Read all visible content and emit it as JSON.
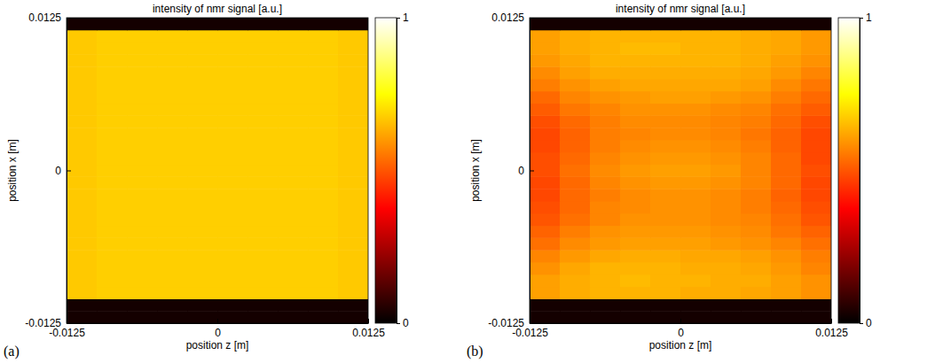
{
  "chart_data": [
    {
      "type": "heatmap",
      "panel": "(a)",
      "title": "intensity of nmr signal [a.u.]",
      "x_label": "position z [m]",
      "y_label": "position x [m]",
      "xlim": [
        -0.0125,
        0.0125
      ],
      "xticks": [
        -0.0125,
        0,
        0.0125
      ],
      "ylim": [
        -0.0125,
        0.0125
      ],
      "yticks": [
        -0.0125,
        0,
        0.0125
      ],
      "colorbar": {
        "range": [
          0,
          1
        ],
        "ticks": [
          0,
          1
        ]
      },
      "cells": [
        [
          0.03,
          0.03,
          0.03,
          0.03,
          0.03,
          0.03,
          0.03,
          0.03,
          0.03,
          0.03
        ],
        [
          0.03,
          0.03,
          0.03,
          0.03,
          0.03,
          0.03,
          0.03,
          0.03,
          0.03,
          0.03
        ],
        [
          0.67,
          0.68,
          0.68,
          0.68,
          0.68,
          0.68,
          0.68,
          0.68,
          0.68,
          0.67
        ],
        [
          0.67,
          0.68,
          0.68,
          0.68,
          0.68,
          0.68,
          0.68,
          0.68,
          0.68,
          0.67
        ],
        [
          0.67,
          0.68,
          0.68,
          0.68,
          0.68,
          0.68,
          0.68,
          0.68,
          0.68,
          0.67
        ],
        [
          0.67,
          0.68,
          0.68,
          0.68,
          0.68,
          0.68,
          0.68,
          0.68,
          0.68,
          0.67
        ],
        [
          0.67,
          0.68,
          0.68,
          0.68,
          0.68,
          0.68,
          0.68,
          0.68,
          0.68,
          0.67
        ],
        [
          0.67,
          0.68,
          0.68,
          0.68,
          0.68,
          0.68,
          0.68,
          0.68,
          0.68,
          0.67
        ],
        [
          0.67,
          0.68,
          0.68,
          0.68,
          0.68,
          0.68,
          0.68,
          0.68,
          0.68,
          0.67
        ],
        [
          0.67,
          0.68,
          0.68,
          0.68,
          0.68,
          0.68,
          0.68,
          0.68,
          0.68,
          0.67
        ],
        [
          0.67,
          0.68,
          0.68,
          0.68,
          0.68,
          0.68,
          0.68,
          0.68,
          0.68,
          0.67
        ],
        [
          0.67,
          0.68,
          0.68,
          0.68,
          0.68,
          0.68,
          0.68,
          0.68,
          0.68,
          0.67
        ],
        [
          0.67,
          0.68,
          0.68,
          0.68,
          0.68,
          0.68,
          0.68,
          0.68,
          0.68,
          0.67
        ],
        [
          0.67,
          0.68,
          0.68,
          0.68,
          0.68,
          0.68,
          0.68,
          0.68,
          0.68,
          0.67
        ],
        [
          0.67,
          0.68,
          0.68,
          0.68,
          0.68,
          0.68,
          0.68,
          0.68,
          0.68,
          0.67
        ],
        [
          0.67,
          0.68,
          0.68,
          0.68,
          0.68,
          0.68,
          0.68,
          0.68,
          0.68,
          0.67
        ],
        [
          0.67,
          0.68,
          0.68,
          0.68,
          0.68,
          0.68,
          0.68,
          0.68,
          0.68,
          0.67
        ],
        [
          0.67,
          0.68,
          0.68,
          0.68,
          0.68,
          0.68,
          0.68,
          0.68,
          0.68,
          0.67
        ],
        [
          0.67,
          0.68,
          0.68,
          0.68,
          0.68,
          0.68,
          0.68,
          0.68,
          0.68,
          0.67
        ],
        [
          0.67,
          0.68,
          0.68,
          0.68,
          0.68,
          0.68,
          0.68,
          0.68,
          0.68,
          0.67
        ],
        [
          0.67,
          0.68,
          0.68,
          0.68,
          0.68,
          0.68,
          0.68,
          0.68,
          0.68,
          0.67
        ],
        [
          0.67,
          0.68,
          0.68,
          0.68,
          0.68,
          0.68,
          0.68,
          0.68,
          0.68,
          0.67
        ],
        [
          0.67,
          0.68,
          0.68,
          0.68,
          0.68,
          0.68,
          0.68,
          0.68,
          0.68,
          0.67
        ],
        [
          0.67,
          0.68,
          0.68,
          0.68,
          0.68,
          0.68,
          0.68,
          0.68,
          0.68,
          0.67
        ],
        [
          0.03,
          0.03,
          0.03,
          0.03,
          0.03,
          0.03,
          0.03,
          0.03,
          0.03,
          0.03
        ]
      ]
    },
    {
      "type": "heatmap",
      "panel": "(b)",
      "title": "intensity of nmr signal [a.u.]",
      "x_label": "position z [m]",
      "y_label": "position x [m]",
      "xlim": [
        -0.0125,
        0.0125
      ],
      "xticks": [
        -0.0125,
        0,
        0.0125
      ],
      "ylim": [
        -0.0125,
        0.0125
      ],
      "yticks": [
        -0.0125,
        0,
        0.0125
      ],
      "colorbar": {
        "range": [
          0,
          1
        ],
        "ticks": [
          0,
          1
        ]
      },
      "cells": [
        [
          0.03,
          0.03,
          0.03,
          0.03,
          0.03,
          0.03,
          0.03,
          0.03,
          0.03,
          0.03
        ],
        [
          0.03,
          0.03,
          0.03,
          0.03,
          0.03,
          0.03,
          0.03,
          0.03,
          0.03,
          0.03
        ],
        [
          0.61,
          0.63,
          0.64,
          0.64,
          0.64,
          0.63,
          0.63,
          0.62,
          0.61,
          0.59
        ],
        [
          0.61,
          0.63,
          0.64,
          0.65,
          0.64,
          0.64,
          0.63,
          0.63,
          0.61,
          0.59
        ],
        [
          0.59,
          0.62,
          0.64,
          0.64,
          0.64,
          0.63,
          0.63,
          0.62,
          0.6,
          0.57
        ],
        [
          0.57,
          0.6,
          0.62,
          0.63,
          0.63,
          0.62,
          0.62,
          0.61,
          0.59,
          0.56
        ],
        [
          0.54,
          0.58,
          0.6,
          0.61,
          0.61,
          0.61,
          0.6,
          0.59,
          0.57,
          0.54
        ],
        [
          0.52,
          0.56,
          0.59,
          0.6,
          0.6,
          0.6,
          0.59,
          0.58,
          0.55,
          0.52
        ],
        [
          0.5,
          0.54,
          0.57,
          0.59,
          0.59,
          0.59,
          0.58,
          0.57,
          0.54,
          0.5
        ],
        [
          0.49,
          0.53,
          0.57,
          0.58,
          0.59,
          0.59,
          0.58,
          0.56,
          0.53,
          0.49
        ],
        [
          0.48,
          0.53,
          0.56,
          0.58,
          0.59,
          0.59,
          0.58,
          0.56,
          0.52,
          0.48
        ],
        [
          0.48,
          0.53,
          0.57,
          0.59,
          0.6,
          0.6,
          0.59,
          0.57,
          0.53,
          0.48
        ],
        [
          0.49,
          0.54,
          0.58,
          0.6,
          0.61,
          0.61,
          0.6,
          0.57,
          0.53,
          0.49
        ],
        [
          0.49,
          0.53,
          0.57,
          0.59,
          0.6,
          0.6,
          0.59,
          0.57,
          0.53,
          0.48
        ],
        [
          0.48,
          0.52,
          0.56,
          0.58,
          0.59,
          0.59,
          0.58,
          0.56,
          0.52,
          0.48
        ],
        [
          0.48,
          0.52,
          0.56,
          0.57,
          0.58,
          0.58,
          0.57,
          0.55,
          0.52,
          0.48
        ],
        [
          0.49,
          0.53,
          0.56,
          0.58,
          0.58,
          0.58,
          0.57,
          0.56,
          0.53,
          0.49
        ],
        [
          0.51,
          0.55,
          0.57,
          0.59,
          0.59,
          0.59,
          0.58,
          0.57,
          0.54,
          0.51
        ],
        [
          0.53,
          0.57,
          0.59,
          0.6,
          0.61,
          0.61,
          0.6,
          0.59,
          0.56,
          0.53
        ],
        [
          0.56,
          0.59,
          0.61,
          0.62,
          0.62,
          0.62,
          0.62,
          0.61,
          0.58,
          0.55
        ],
        [
          0.58,
          0.61,
          0.63,
          0.63,
          0.63,
          0.63,
          0.63,
          0.62,
          0.6,
          0.57
        ],
        [
          0.6,
          0.62,
          0.64,
          0.64,
          0.64,
          0.64,
          0.64,
          0.63,
          0.61,
          0.59
        ],
        [
          0.61,
          0.63,
          0.64,
          0.65,
          0.65,
          0.64,
          0.64,
          0.63,
          0.62,
          0.6
        ],
        [
          0.61,
          0.63,
          0.64,
          0.64,
          0.64,
          0.64,
          0.64,
          0.63,
          0.62,
          0.6
        ],
        [
          0.03,
          0.03,
          0.03,
          0.03,
          0.03,
          0.03,
          0.03,
          0.03,
          0.03,
          0.03
        ]
      ]
    }
  ]
}
